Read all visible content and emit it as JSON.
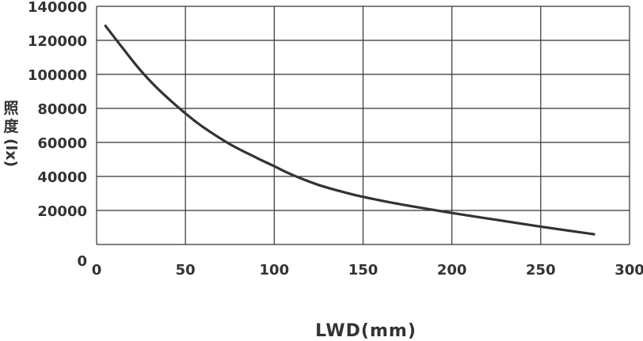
{
  "chart_data": {
    "type": "line",
    "xlabel": "LWD(mm)",
    "ylabel": "照度(lx)",
    "xlim": [
      0,
      300
    ],
    "ylim": [
      0,
      140000
    ],
    "x_ticks": [
      "0",
      "50",
      "100",
      "150",
      "200",
      "250",
      "300"
    ],
    "y_ticks": [
      "0",
      "20000",
      "40000",
      "60000",
      "80000",
      "100000",
      "120000",
      "140000"
    ],
    "grid": true,
    "series": [
      {
        "x": [
          5,
          15,
          25,
          35,
          50,
          60,
          75,
          90,
          100,
          110,
          125,
          140,
          150,
          165,
          180,
          200,
          225,
          250,
          280
        ],
        "y": [
          128500,
          115000,
          102000,
          91000,
          77000,
          69000,
          59000,
          51000,
          46000,
          41000,
          35000,
          30500,
          28000,
          24800,
          22000,
          18500,
          14500,
          10500,
          6000
        ]
      }
    ],
    "line_color": "#333333",
    "grid_color": "#333333"
  }
}
